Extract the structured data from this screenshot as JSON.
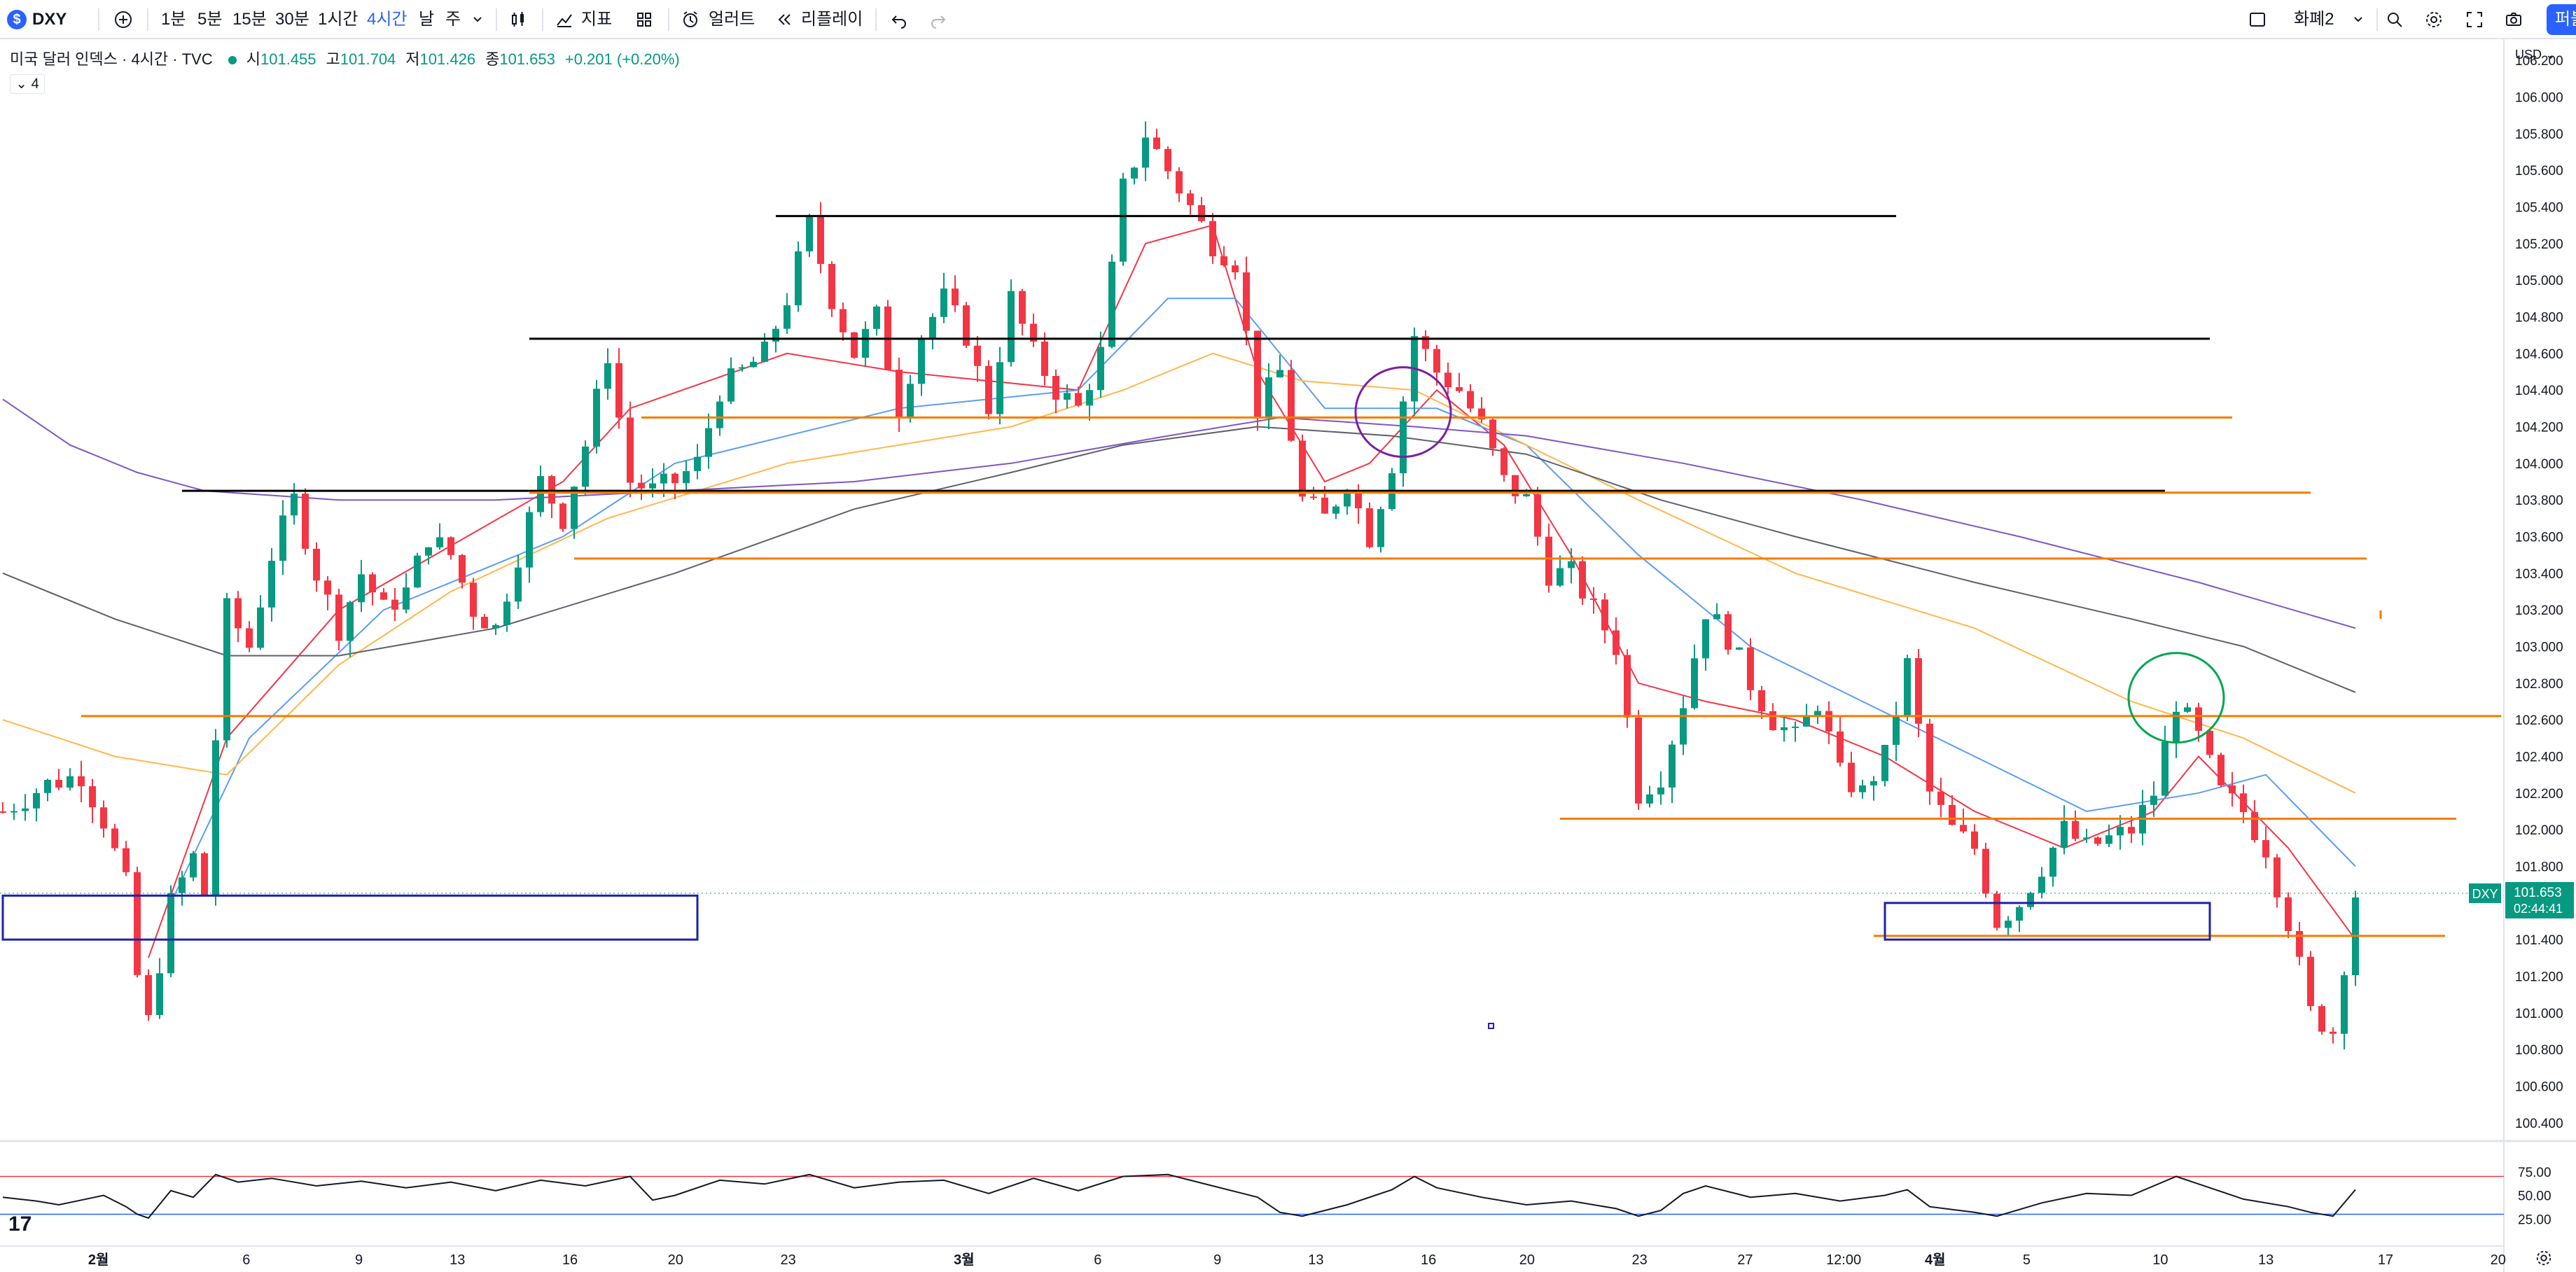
{
  "toolbar": {
    "symbol": "DXY",
    "symbol_logo": "$",
    "add_icon": "plus-circle-icon",
    "intervals": [
      "1분",
      "5분",
      "15분",
      "30분",
      "1시간",
      "4시간",
      "날",
      "주"
    ],
    "active_interval": "4시간",
    "indicators_label": "지표",
    "alert_label": "얼러트",
    "replay_label": "리플레이",
    "layout_label": "화폐2",
    "publish_label": "퍼블",
    "icons": [
      "chevron-down-icon",
      "candles-icon",
      "indicators-icon",
      "templates-icon",
      "alert-icon",
      "replay-icon",
      "undo-icon",
      "redo-icon",
      "layout-icon",
      "search-icon",
      "gear-icon",
      "fullscreen-icon",
      "camera-icon"
    ]
  },
  "legend": {
    "title": "미국 달러 인덱스 · 4시간 · TVC",
    "open_label": "시",
    "open": "101.455",
    "high_label": "고",
    "high": "101.704",
    "low_label": "저",
    "low": "101.426",
    "close_label": "종",
    "close": "101.653",
    "change": "+0.201 (+0.20%)",
    "collapse_label": "4"
  },
  "currency_label": "USD",
  "price_tag": {
    "symbol": "DXY",
    "price": "101.653",
    "countdown": "02:44:41",
    "color": "#089981"
  },
  "colors": {
    "up": "#089981",
    "down": "#f23645",
    "ma_fast": "#f23645",
    "ma_blue": "#5b9cf6",
    "ma_orange": "#ffb74d",
    "ma_gray": "#5d606b",
    "ma_purple": "#7e57c2",
    "hline_orange": "#f57c00",
    "hline_black": "#000000",
    "box": "#1e22aa",
    "purple_circle": "#7b1fa2",
    "green_circle": "#00a651",
    "rsi_line": "#131722",
    "rsi_upper": "#f23645",
    "rsi_lower": "#2962ff"
  },
  "chart_data": {
    "type": "candlestick",
    "title": "미국 달러 인덱스 · 4시간 · TVC",
    "ylim": [
      100.3,
      106.3
    ],
    "yticks": [
      "100.400",
      "100.600",
      "100.800",
      "101.000",
      "101.200",
      "101.400",
      "101.600",
      "101.800",
      "102.000",
      "102.200",
      "102.400",
      "102.600",
      "102.800",
      "103.000",
      "103.200",
      "103.400",
      "103.600",
      "103.800",
      "104.000",
      "104.200",
      "104.400",
      "104.600",
      "104.800",
      "105.000",
      "105.200",
      "105.400",
      "105.600",
      "105.800",
      "106.000",
      "106.200"
    ],
    "xticks": [
      "2월",
      "6",
      "9",
      "13",
      "16",
      "20",
      "23",
      "3월",
      "6",
      "9",
      "13",
      "16",
      "20",
      "23",
      "27",
      "12:00",
      "4월",
      "5",
      "10",
      "13",
      "17",
      "20"
    ],
    "close_path": [
      [
        0,
        102.1
      ],
      [
        4,
        102.25
      ],
      [
        7,
        102.3
      ],
      [
        9,
        102.05
      ],
      [
        11,
        101.7
      ],
      [
        12,
        101.2
      ],
      [
        13,
        100.95
      ],
      [
        15,
        101.6
      ],
      [
        17,
        101.85
      ],
      [
        18,
        101.65
      ],
      [
        19,
        102.5
      ],
      [
        20,
        103.2
      ],
      [
        22,
        103.0
      ],
      [
        24,
        103.5
      ],
      [
        26,
        103.8
      ],
      [
        28,
        103.4
      ],
      [
        30,
        103.1
      ],
      [
        32,
        103.4
      ],
      [
        34,
        103.2
      ],
      [
        36,
        103.3
      ],
      [
        38,
        103.6
      ],
      [
        40,
        103.5
      ],
      [
        42,
        103.2
      ],
      [
        44,
        103.1
      ],
      [
        46,
        103.5
      ],
      [
        48,
        103.9
      ],
      [
        50,
        103.7
      ],
      [
        52,
        104.1
      ],
      [
        54,
        104.6
      ],
      [
        56,
        103.9
      ],
      [
        58,
        103.85
      ],
      [
        60,
        103.9
      ],
      [
        62,
        104.0
      ],
      [
        64,
        104.4
      ],
      [
        66,
        104.5
      ],
      [
        68,
        104.6
      ],
      [
        70,
        104.9
      ],
      [
        72,
        105.3
      ],
      [
        74,
        104.9
      ],
      [
        76,
        104.6
      ],
      [
        78,
        104.8
      ],
      [
        80,
        104.3
      ],
      [
        82,
        104.7
      ],
      [
        84,
        104.9
      ],
      [
        86,
        104.7
      ],
      [
        88,
        104.3
      ],
      [
        90,
        104.9
      ],
      [
        92,
        104.6
      ],
      [
        94,
        104.4
      ],
      [
        96,
        104.3
      ],
      [
        98,
        104.6
      ],
      [
        100,
        105.5
      ],
      [
        102,
        105.8
      ],
      [
        104,
        105.6
      ],
      [
        106,
        105.4
      ],
      [
        108,
        105.2
      ],
      [
        110,
        105.1
      ],
      [
        112,
        104.3
      ],
      [
        114,
        104.5
      ],
      [
        116,
        103.8
      ],
      [
        118,
        103.7
      ],
      [
        120,
        103.9
      ],
      [
        122,
        103.6
      ],
      [
        124,
        104.0
      ],
      [
        126,
        104.7
      ],
      [
        128,
        104.5
      ],
      [
        130,
        104.4
      ],
      [
        132,
        104.2
      ],
      [
        134,
        103.9
      ],
      [
        136,
        103.8
      ],
      [
        138,
        103.4
      ],
      [
        140,
        103.4
      ],
      [
        142,
        103.2
      ],
      [
        144,
        103.0
      ],
      [
        146,
        102.2
      ],
      [
        148,
        102.3
      ],
      [
        150,
        102.7
      ],
      [
        152,
        103.2
      ],
      [
        154,
        103.05
      ],
      [
        156,
        102.8
      ],
      [
        158,
        102.6
      ],
      [
        160,
        102.5
      ],
      [
        162,
        102.7
      ],
      [
        164,
        102.3
      ],
      [
        166,
        102.2
      ],
      [
        168,
        102.4
      ],
      [
        170,
        102.9
      ],
      [
        172,
        102.2
      ],
      [
        174,
        102.0
      ],
      [
        176,
        101.9
      ],
      [
        178,
        101.5
      ],
      [
        180,
        101.6
      ],
      [
        182,
        101.8
      ],
      [
        184,
        102.0
      ],
      [
        186,
        101.9
      ],
      [
        188,
        101.95
      ],
      [
        190,
        102.0
      ],
      [
        192,
        102.2
      ],
      [
        194,
        102.7
      ],
      [
        196,
        102.5
      ],
      [
        198,
        102.2
      ],
      [
        200,
        102.1
      ],
      [
        202,
        101.9
      ],
      [
        204,
        101.5
      ],
      [
        206,
        101.0
      ],
      [
        208,
        100.9
      ],
      [
        210,
        101.65
      ]
    ],
    "bar_count": 211,
    "moving_averages": [
      {
        "color_key": "ma_fast",
        "points": [
          [
            13,
            101.3
          ],
          [
            20,
            102.5
          ],
          [
            30,
            103.2
          ],
          [
            50,
            103.9
          ],
          [
            56,
            104.3
          ],
          [
            70,
            104.6
          ],
          [
            80,
            104.5
          ],
          [
            96,
            104.4
          ],
          [
            102,
            105.2
          ],
          [
            108,
            105.3
          ],
          [
            112,
            104.5
          ],
          [
            118,
            103.9
          ],
          [
            122,
            104.0
          ],
          [
            128,
            104.4
          ],
          [
            134,
            104.1
          ],
          [
            140,
            103.5
          ],
          [
            146,
            102.8
          ],
          [
            152,
            102.7
          ],
          [
            160,
            102.6
          ],
          [
            168,
            102.4
          ],
          [
            176,
            102.1
          ],
          [
            184,
            101.9
          ],
          [
            192,
            102.1
          ],
          [
            196,
            102.4
          ],
          [
            204,
            101.9
          ],
          [
            210,
            101.4
          ]
        ]
      },
      {
        "color_key": "ma_blue",
        "points": [
          [
            15,
            101.6
          ],
          [
            22,
            102.5
          ],
          [
            34,
            103.2
          ],
          [
            50,
            103.6
          ],
          [
            60,
            104.0
          ],
          [
            80,
            104.3
          ],
          [
            96,
            104.4
          ],
          [
            104,
            104.9
          ],
          [
            110,
            104.9
          ],
          [
            118,
            104.3
          ],
          [
            128,
            104.3
          ],
          [
            136,
            104.1
          ],
          [
            146,
            103.5
          ],
          [
            156,
            103.0
          ],
          [
            166,
            102.7
          ],
          [
            176,
            102.4
          ],
          [
            186,
            102.1
          ],
          [
            196,
            102.2
          ],
          [
            202,
            102.3
          ],
          [
            210,
            101.8
          ]
        ]
      },
      {
        "color_key": "ma_orange",
        "points": [
          [
            0,
            102.6
          ],
          [
            10,
            102.4
          ],
          [
            20,
            102.3
          ],
          [
            30,
            102.9
          ],
          [
            40,
            103.3
          ],
          [
            54,
            103.7
          ],
          [
            70,
            104.0
          ],
          [
            90,
            104.2
          ],
          [
            100,
            104.4
          ],
          [
            108,
            104.6
          ],
          [
            116,
            104.45
          ],
          [
            126,
            104.4
          ],
          [
            136,
            104.1
          ],
          [
            146,
            103.8
          ],
          [
            160,
            103.4
          ],
          [
            176,
            103.1
          ],
          [
            190,
            102.7
          ],
          [
            200,
            102.5
          ],
          [
            210,
            102.2
          ]
        ]
      },
      {
        "color_key": "ma_gray",
        "points": [
          [
            0,
            103.4
          ],
          [
            10,
            103.15
          ],
          [
            20,
            102.95
          ],
          [
            30,
            102.95
          ],
          [
            44,
            103.1
          ],
          [
            60,
            103.4
          ],
          [
            76,
            103.75
          ],
          [
            90,
            103.95
          ],
          [
            100,
            104.1
          ],
          [
            112,
            104.2
          ],
          [
            124,
            104.15
          ],
          [
            136,
            104.05
          ],
          [
            148,
            103.8
          ],
          [
            160,
            103.6
          ],
          [
            176,
            103.35
          ],
          [
            190,
            103.15
          ],
          [
            200,
            103.0
          ],
          [
            210,
            102.75
          ]
        ]
      },
      {
        "color_key": "ma_purple",
        "points": [
          [
            0,
            104.35
          ],
          [
            6,
            104.1
          ],
          [
            12,
            103.95
          ],
          [
            18,
            103.85
          ],
          [
            30,
            103.8
          ],
          [
            44,
            103.8
          ],
          [
            60,
            103.85
          ],
          [
            76,
            103.9
          ],
          [
            90,
            104.0
          ],
          [
            104,
            104.15
          ],
          [
            114,
            104.25
          ],
          [
            126,
            104.2
          ],
          [
            136,
            104.15
          ],
          [
            150,
            104.0
          ],
          [
            166,
            103.8
          ],
          [
            180,
            103.6
          ],
          [
            196,
            103.35
          ],
          [
            210,
            103.1
          ]
        ]
      }
    ],
    "horizontal_lines": [
      {
        "price": 105.35,
        "x_start": 69,
        "x_end": 169,
        "color_key": "hline_black"
      },
      {
        "price": 104.68,
        "x_start": 47,
        "x_end": 197,
        "color_key": "hline_black"
      },
      {
        "price": 103.85,
        "x_start": 16,
        "x_end": 193,
        "color_key": "hline_black"
      },
      {
        "price": 104.25,
        "x_start": 57,
        "x_end": 199,
        "color_key": "hline_orange"
      },
      {
        "price": 103.84,
        "x_start": 47,
        "x_end": 206,
        "color_key": "hline_orange"
      },
      {
        "price": 103.48,
        "x_start": 51,
        "x_end": 211,
        "color_key": "hline_orange"
      },
      {
        "price": 102.62,
        "x_start": 7,
        "x_end": 223,
        "color_key": "hline_orange"
      },
      {
        "price": 102.06,
        "x_start": 139,
        "x_end": 219,
        "color_key": "hline_orange"
      },
      {
        "price": 101.42,
        "x_start": 167,
        "x_end": 218,
        "color_key": "hline_orange"
      }
    ],
    "rectangles": [
      {
        "x_start": 0,
        "x_end": 62,
        "price_top": 101.64,
        "price_bottom": 101.4
      },
      {
        "x_start": 168,
        "x_end": 197,
        "price_top": 101.6,
        "price_bottom": 101.4
      }
    ],
    "circles": [
      {
        "cx": 125,
        "price": 104.28,
        "color_key": "purple_circle"
      },
      {
        "cx": 194,
        "price": 102.72,
        "color_key": "green_circle"
      }
    ],
    "rsi": {
      "levels": [
        "75.00",
        "50.00",
        "25.00"
      ],
      "upper": 70,
      "lower": 30,
      "points": [
        [
          0,
          48
        ],
        [
          3,
          44
        ],
        [
          5,
          40
        ],
        [
          7,
          45
        ],
        [
          9,
          50
        ],
        [
          11,
          38
        ],
        [
          12,
          30
        ],
        [
          13,
          26
        ],
        [
          15,
          55
        ],
        [
          17,
          48
        ],
        [
          19,
          72
        ],
        [
          21,
          64
        ],
        [
          24,
          68
        ],
        [
          28,
          60
        ],
        [
          32,
          65
        ],
        [
          36,
          58
        ],
        [
          40,
          64
        ],
        [
          44,
          55
        ],
        [
          48,
          66
        ],
        [
          52,
          60
        ],
        [
          56,
          70
        ],
        [
          58,
          45
        ],
        [
          60,
          50
        ],
        [
          64,
          66
        ],
        [
          68,
          62
        ],
        [
          72,
          72
        ],
        [
          76,
          58
        ],
        [
          80,
          64
        ],
        [
          84,
          66
        ],
        [
          88,
          52
        ],
        [
          92,
          68
        ],
        [
          96,
          55
        ],
        [
          100,
          70
        ],
        [
          104,
          72
        ],
        [
          108,
          60
        ],
        [
          112,
          48
        ],
        [
          114,
          32
        ],
        [
          116,
          28
        ],
        [
          120,
          40
        ],
        [
          124,
          56
        ],
        [
          126,
          70
        ],
        [
          128,
          58
        ],
        [
          132,
          48
        ],
        [
          136,
          40
        ],
        [
          140,
          44
        ],
        [
          144,
          36
        ],
        [
          146,
          28
        ],
        [
          148,
          34
        ],
        [
          150,
          52
        ],
        [
          152,
          60
        ],
        [
          156,
          48
        ],
        [
          160,
          52
        ],
        [
          164,
          44
        ],
        [
          168,
          50
        ],
        [
          170,
          56
        ],
        [
          172,
          38
        ],
        [
          176,
          32
        ],
        [
          178,
          28
        ],
        [
          182,
          42
        ],
        [
          186,
          52
        ],
        [
          190,
          50
        ],
        [
          194,
          70
        ],
        [
          196,
          62
        ],
        [
          200,
          46
        ],
        [
          204,
          38
        ],
        [
          206,
          32
        ],
        [
          208,
          28
        ],
        [
          210,
          56
        ]
      ]
    }
  }
}
